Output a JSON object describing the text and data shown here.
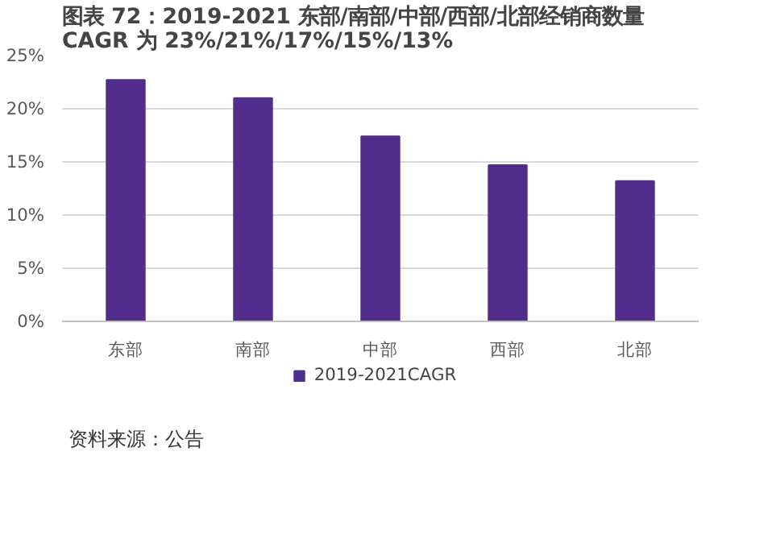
{
  "chart_data": {
    "type": "bar",
    "title": "图表 72：2019-2021 东部/南部/中部/西部/北部经销商数量 CAGR 为 23%/21%/17%/15%/13%",
    "categories": [
      "东部",
      "南部",
      "中部",
      "西部",
      "北部"
    ],
    "series": [
      {
        "name": "2019-2021CAGR",
        "color": "#512d8c",
        "values": [
          22.7,
          21.0,
          17.4,
          14.7,
          13.2
        ]
      }
    ],
    "ylim": [
      0,
      25
    ],
    "yticks": [
      {
        "value": 0,
        "label": "0%"
      },
      {
        "value": 5,
        "label": "5%"
      },
      {
        "value": 10,
        "label": "10%"
      },
      {
        "value": 15,
        "label": "15%"
      },
      {
        "value": 20,
        "label": "20%"
      },
      {
        "value": 25,
        "label": "25%"
      }
    ],
    "grid": "y",
    "legend": "bottom",
    "annotations": [
      "资料来源：公告"
    ]
  }
}
